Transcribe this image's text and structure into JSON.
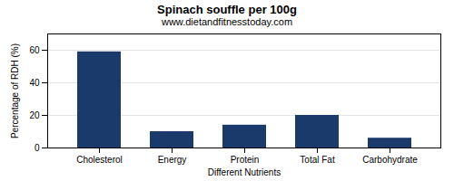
{
  "chart_data": {
    "type": "bar",
    "title": "Spinach souffle per 100g",
    "subtitle": "www.dietandfitnesstoday.com",
    "xlabel": "Different Nutrients",
    "ylabel": "Percentage of RDH (%)",
    "categories": [
      "Cholesterol",
      "Energy",
      "Protein",
      "Total Fat",
      "Carbohydrate"
    ],
    "values": [
      59,
      10,
      14,
      20,
      6
    ],
    "color": "#1a3a6b",
    "ylim": [
      0,
      70
    ],
    "yticks": [
      0,
      20,
      40,
      60
    ],
    "grid": true
  }
}
